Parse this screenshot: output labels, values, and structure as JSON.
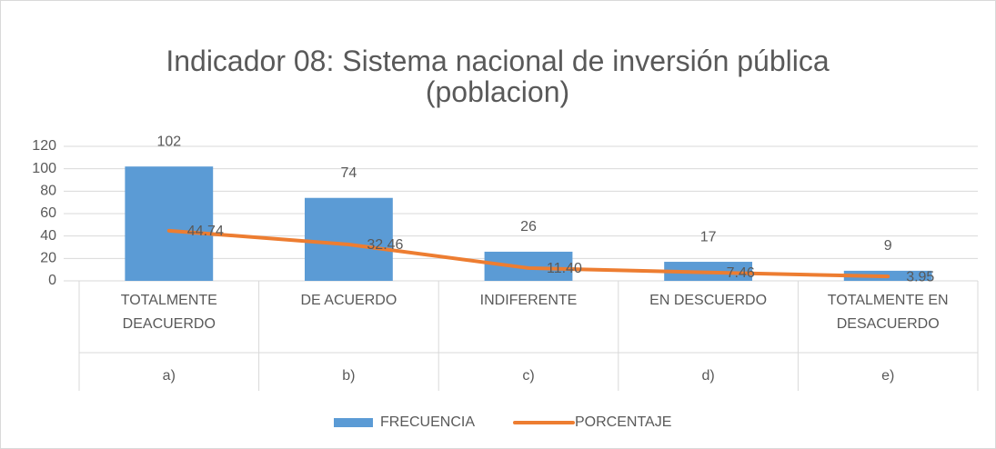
{
  "chart_data": {
    "type": "bar_line",
    "title": "Indicador 08: Sistema nacional de inversión pública (poblacion)",
    "categories": [
      "TOTALMENTE DEACUERDO",
      "DE ACUERDO",
      "INDIFERENTE",
      "EN DESCUERDO",
      "TOTALMENTE EN DESACUERDO"
    ],
    "category_groups": [
      "a)",
      "b)",
      "c)",
      "d)",
      "e)"
    ],
    "series": [
      {
        "name": "FRECUENCIA",
        "type": "bar",
        "color": "#5b9bd5",
        "values": [
          102,
          74,
          26,
          17,
          9
        ]
      },
      {
        "name": "PORCENTAJE",
        "type": "line",
        "color": "#ed7d31",
        "values": [
          44.74,
          32.46,
          11.4,
          7.46,
          3.95
        ],
        "value_labels": [
          "44.74",
          "32.46",
          "11.40",
          "7.46",
          "3.95"
        ]
      }
    ],
    "ylim": [
      0,
      120
    ],
    "yticks": [
      0,
      20,
      40,
      60,
      80,
      100,
      120
    ],
    "grid": true,
    "legend": "bottom"
  }
}
